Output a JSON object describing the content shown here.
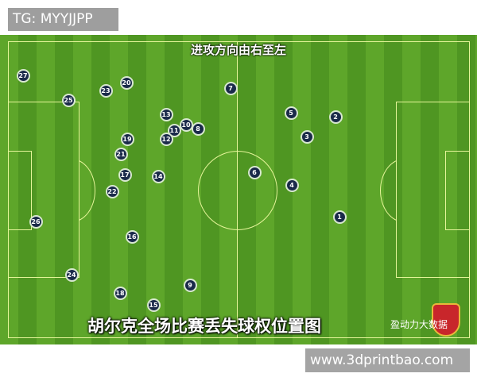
{
  "tag": "TG: MYYJJPP",
  "direction_label": "进攻方向由右至左",
  "caption": "胡尔克全场比赛丢失球权位置图",
  "brand": "盈动力大数据",
  "watermark": "www.3dprintbao.com",
  "colors": {
    "pitch_light": "#5ea62a",
    "pitch_dark": "#4f9622",
    "marker": "#1a2a4a"
  },
  "markers": [
    "27",
    "20",
    "23",
    "25",
    "7",
    "5",
    "2",
    "13",
    "10",
    "11",
    "8",
    "12",
    "19",
    "3",
    "21",
    "17",
    "14",
    "6",
    "4",
    "22",
    "26",
    "1",
    "16",
    "24",
    "9",
    "18",
    "15"
  ]
}
